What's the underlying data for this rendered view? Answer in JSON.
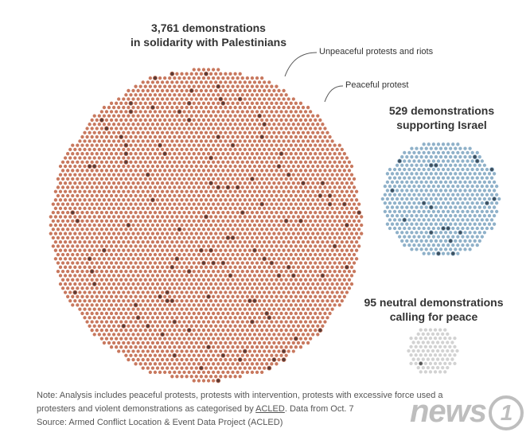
{
  "chart_data": {
    "type": "dot-cluster",
    "clusters": [
      {
        "name": "pro-palestinian",
        "total": 3761,
        "title_line1": "3,761 demonstrations",
        "title_line2": "in solidarity with Palestinians",
        "base_color": "#c8785e",
        "highlight_color": "#5a3a34",
        "highlighted_count": 112
      },
      {
        "name": "pro-israel",
        "total": 529,
        "title_line1": "529 demonstrations",
        "title_line2": "supporting Israel",
        "base_color": "#8fb1c9",
        "highlight_color": "#3d4f5e",
        "highlighted_count": 19
      },
      {
        "name": "neutral",
        "total": 95,
        "title_line1": "95 neutral demonstrations",
        "title_line2": "calling for peace",
        "base_color": "#d2d2d2",
        "highlight_color": "#555555",
        "highlighted_count": 1
      }
    ],
    "legend": {
      "unpeaceful_label": "Unpeaceful protests and riots",
      "peaceful_label": "Peaceful protest"
    }
  },
  "footer": {
    "note_part1": "Note: Analysis includes peaceful protests, protests with intervention, protests with excessive force used a",
    "note_part2_before": "protesters and violent demonstrations as categorised by ",
    "note_link": "ACLED",
    "note_part2_after": ". Data from Oct. 7",
    "source": "Source: Armed Conflict Location & Event Data Project (ACLED)"
  },
  "watermark": {
    "text": "news",
    "digit": "1"
  }
}
